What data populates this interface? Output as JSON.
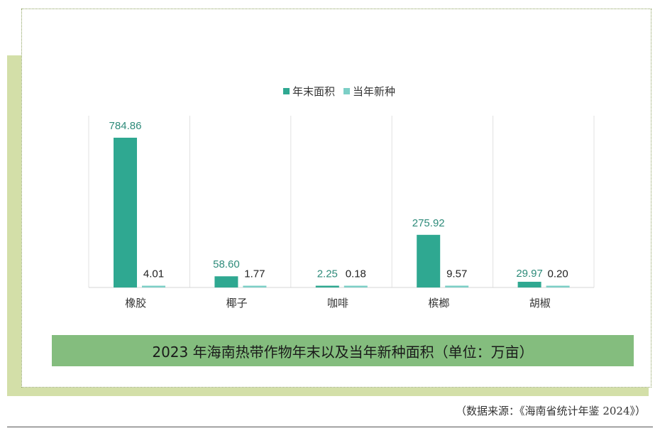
{
  "chart_data": {
    "type": "bar",
    "categories": [
      "橡胶",
      "椰子",
      "咖啡",
      "槟榔",
      "胡椒"
    ],
    "series": [
      {
        "name": "年末面积",
        "values": [
          784.86,
          58.6,
          2.25,
          275.92,
          29.97
        ],
        "labels": [
          "784.86",
          "58.60",
          "2.25",
          "275.92",
          "29.97"
        ],
        "color": "#2fa891"
      },
      {
        "name": "当年新种",
        "values": [
          4.01,
          1.77,
          0.18,
          9.57,
          0.2
        ],
        "labels": [
          "4.01",
          "1.77",
          "0.18",
          "9.57",
          "0.20"
        ],
        "color": "#7ccfc6"
      }
    ],
    "title": "2023 年海南热带作物年末以及当年新种面积（单位：万亩）",
    "xlabel": "",
    "ylabel": "",
    "ylim": [
      0,
      800
    ],
    "legend": "top-center",
    "grid": false
  },
  "source": "（数据来源：《海南省统计年鉴 2024》）",
  "colors": {
    "bar_primary": "#2fa891",
    "bar_secondary": "#7ccfc6",
    "label_primary": "#2e8b7a",
    "label_secondary": "#222222",
    "caption_bg": "#84bd7e"
  }
}
